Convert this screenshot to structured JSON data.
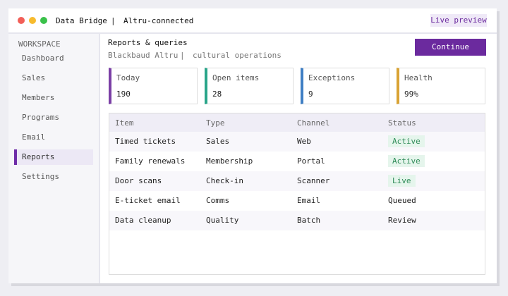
{
  "window": {
    "app": "Data Bridge",
    "separator": "|",
    "status": "Altru-connected",
    "badge": "Live preview"
  },
  "sidebar": {
    "heading": "WORKSPACE",
    "items": [
      "Dashboard",
      "Sales",
      "Members",
      "Programs",
      "Email",
      "Reports",
      "Settings"
    ],
    "active": 5
  },
  "header": {
    "title": "Reports & queries",
    "subtitle_left": "Blackbaud Altru",
    "subtitle_separator": "|",
    "subtitle_right": "cultural operations",
    "button": "Continue"
  },
  "cards": [
    {
      "label": "Today",
      "value": "190",
      "color": "#7b3fa6"
    },
    {
      "label": "Open items",
      "value": "28",
      "color": "#2aa58a"
    },
    {
      "label": "Exceptions",
      "value": "9",
      "color": "#3f7fc4"
    },
    {
      "label": "Health",
      "value": "99%",
      "color": "#d9a334"
    }
  ],
  "table": {
    "columns": [
      "Item",
      "Type",
      "Channel",
      "Status"
    ],
    "rows": [
      {
        "cells": [
          "Timed tickets",
          "Sales",
          "Web",
          "Active"
        ],
        "badge": true
      },
      {
        "cells": [
          "Family renewals",
          "Membership",
          "Portal",
          "Active"
        ],
        "badge": true
      },
      {
        "cells": [
          "Door scans",
          "Check-in",
          "Scanner",
          "Live"
        ],
        "badge": true
      },
      {
        "cells": [
          "E-ticket email",
          "Comms",
          "Email",
          "Queued"
        ],
        "badge": false
      },
      {
        "cells": [
          "Data cleanup",
          "Quality",
          "Batch",
          "Review"
        ],
        "badge": false
      }
    ]
  }
}
